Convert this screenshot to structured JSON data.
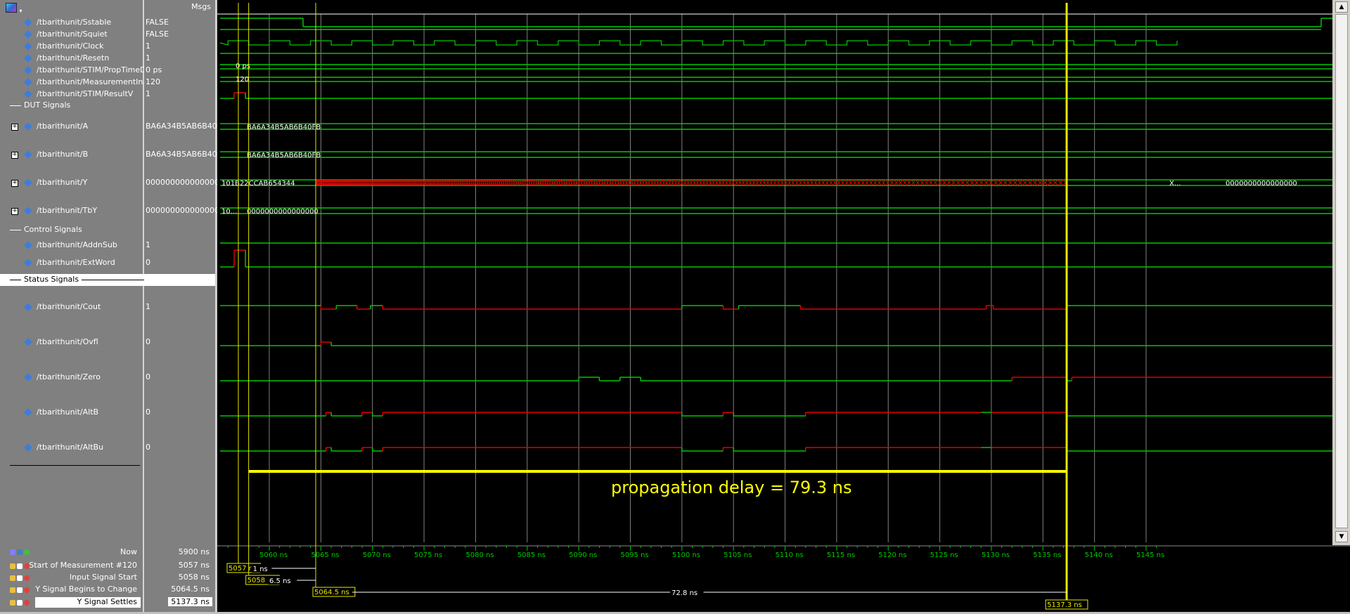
{
  "header": {
    "msgs_label": "Msgs"
  },
  "signals": [
    {
      "name": "/tbarithunit/Sstable",
      "value": "FALSE",
      "expandable": false
    },
    {
      "name": "/tbarithunit/Squiet",
      "value": "FALSE",
      "expandable": false
    },
    {
      "name": "/tbarithunit/Clock",
      "value": "1",
      "expandable": false
    },
    {
      "name": "/tbarithunit/Resetn",
      "value": "1",
      "expandable": false
    },
    {
      "name": "/tbarithunit/STIM/PropTimeD...",
      "value": "0 ps",
      "expandable": false
    },
    {
      "name": "/tbarithunit/MeasurementIn...",
      "value": "120",
      "expandable": false
    },
    {
      "name": "/tbarithunit/STIM/ResultV",
      "value": "1",
      "expandable": false
    }
  ],
  "groups": {
    "dut": "DUT Signals",
    "control": "Control Signals",
    "status": "Status Signals"
  },
  "dut_signals": [
    {
      "name": "/tbarithunit/A",
      "value": "BA6A34B5AB6B40FB"
    },
    {
      "name": "/tbarithunit/B",
      "value": "BA6A34B5AB6B40FB"
    },
    {
      "name": "/tbarithunit/Y",
      "value": "0000000000000000"
    },
    {
      "name": "/tbarithunit/TbY",
      "value": "0000000000000000"
    }
  ],
  "control_signals": [
    {
      "name": "/tbarithunit/AddnSub",
      "value": "1"
    },
    {
      "name": "/tbarithunit/ExtWord",
      "value": "0"
    }
  ],
  "status_signals": [
    {
      "name": "/tbarithunit/Cout",
      "value": "1"
    },
    {
      "name": "/tbarithunit/Ovfl",
      "value": "0"
    },
    {
      "name": "/tbarithunit/Zero",
      "value": "0"
    },
    {
      "name": "/tbarithunit/AltB",
      "value": "0"
    },
    {
      "name": "/tbarithunit/AltBu",
      "value": "0"
    }
  ],
  "wave_labels": {
    "prop_time": "0 ps",
    "meas_index": "120",
    "a_value": "BA6A34B5AB6B40FB",
    "b_value": "BA6A34B5AB6B40FB",
    "y_before": "101B22CCAB654344",
    "y_after": "0000000000000000",
    "y_mid": "X...",
    "tby_before": "10...",
    "tby_after": "0000000000000000"
  },
  "annotation": "propagation delay = 79.3 ns",
  "timeline": {
    "ticks": [
      "5060 ns",
      "5065 ns",
      "5070 ns",
      "5075 ns",
      "5080 ns",
      "5085 ns",
      "5090 ns",
      "5095 ns",
      "5100 ns",
      "5105 ns",
      "5110 ns",
      "5115 ns",
      "5120 ns",
      "5125 ns",
      "5130 ns",
      "5135 ns",
      "5140 ns",
      "5145 ns"
    ]
  },
  "cursors": [
    {
      "name": "Now",
      "value": "5900 ns"
    },
    {
      "name": "Start of Measurement #120",
      "value": "5057 ns",
      "label": "5057 ns"
    },
    {
      "name": "Input Signal Start",
      "value": "5058 ns",
      "label": "5058 ns"
    },
    {
      "name": "Y Signal Begins to Change",
      "value": "5064.5 ns",
      "label": "5064.5 ns"
    },
    {
      "name": "Y Signal Settles",
      "value": "5137.3 ns",
      "label": "5137.3 ns"
    }
  ],
  "deltas": {
    "d1": "1 ns",
    "d2": "6.5 ns",
    "d3": "72.8 ns"
  },
  "colors": {
    "wave_green": "#00c800",
    "wave_red": "#e00000",
    "cursor_yellow": "#e8e800",
    "annotation_yellow": "#ffff00",
    "grid": "#808080"
  }
}
